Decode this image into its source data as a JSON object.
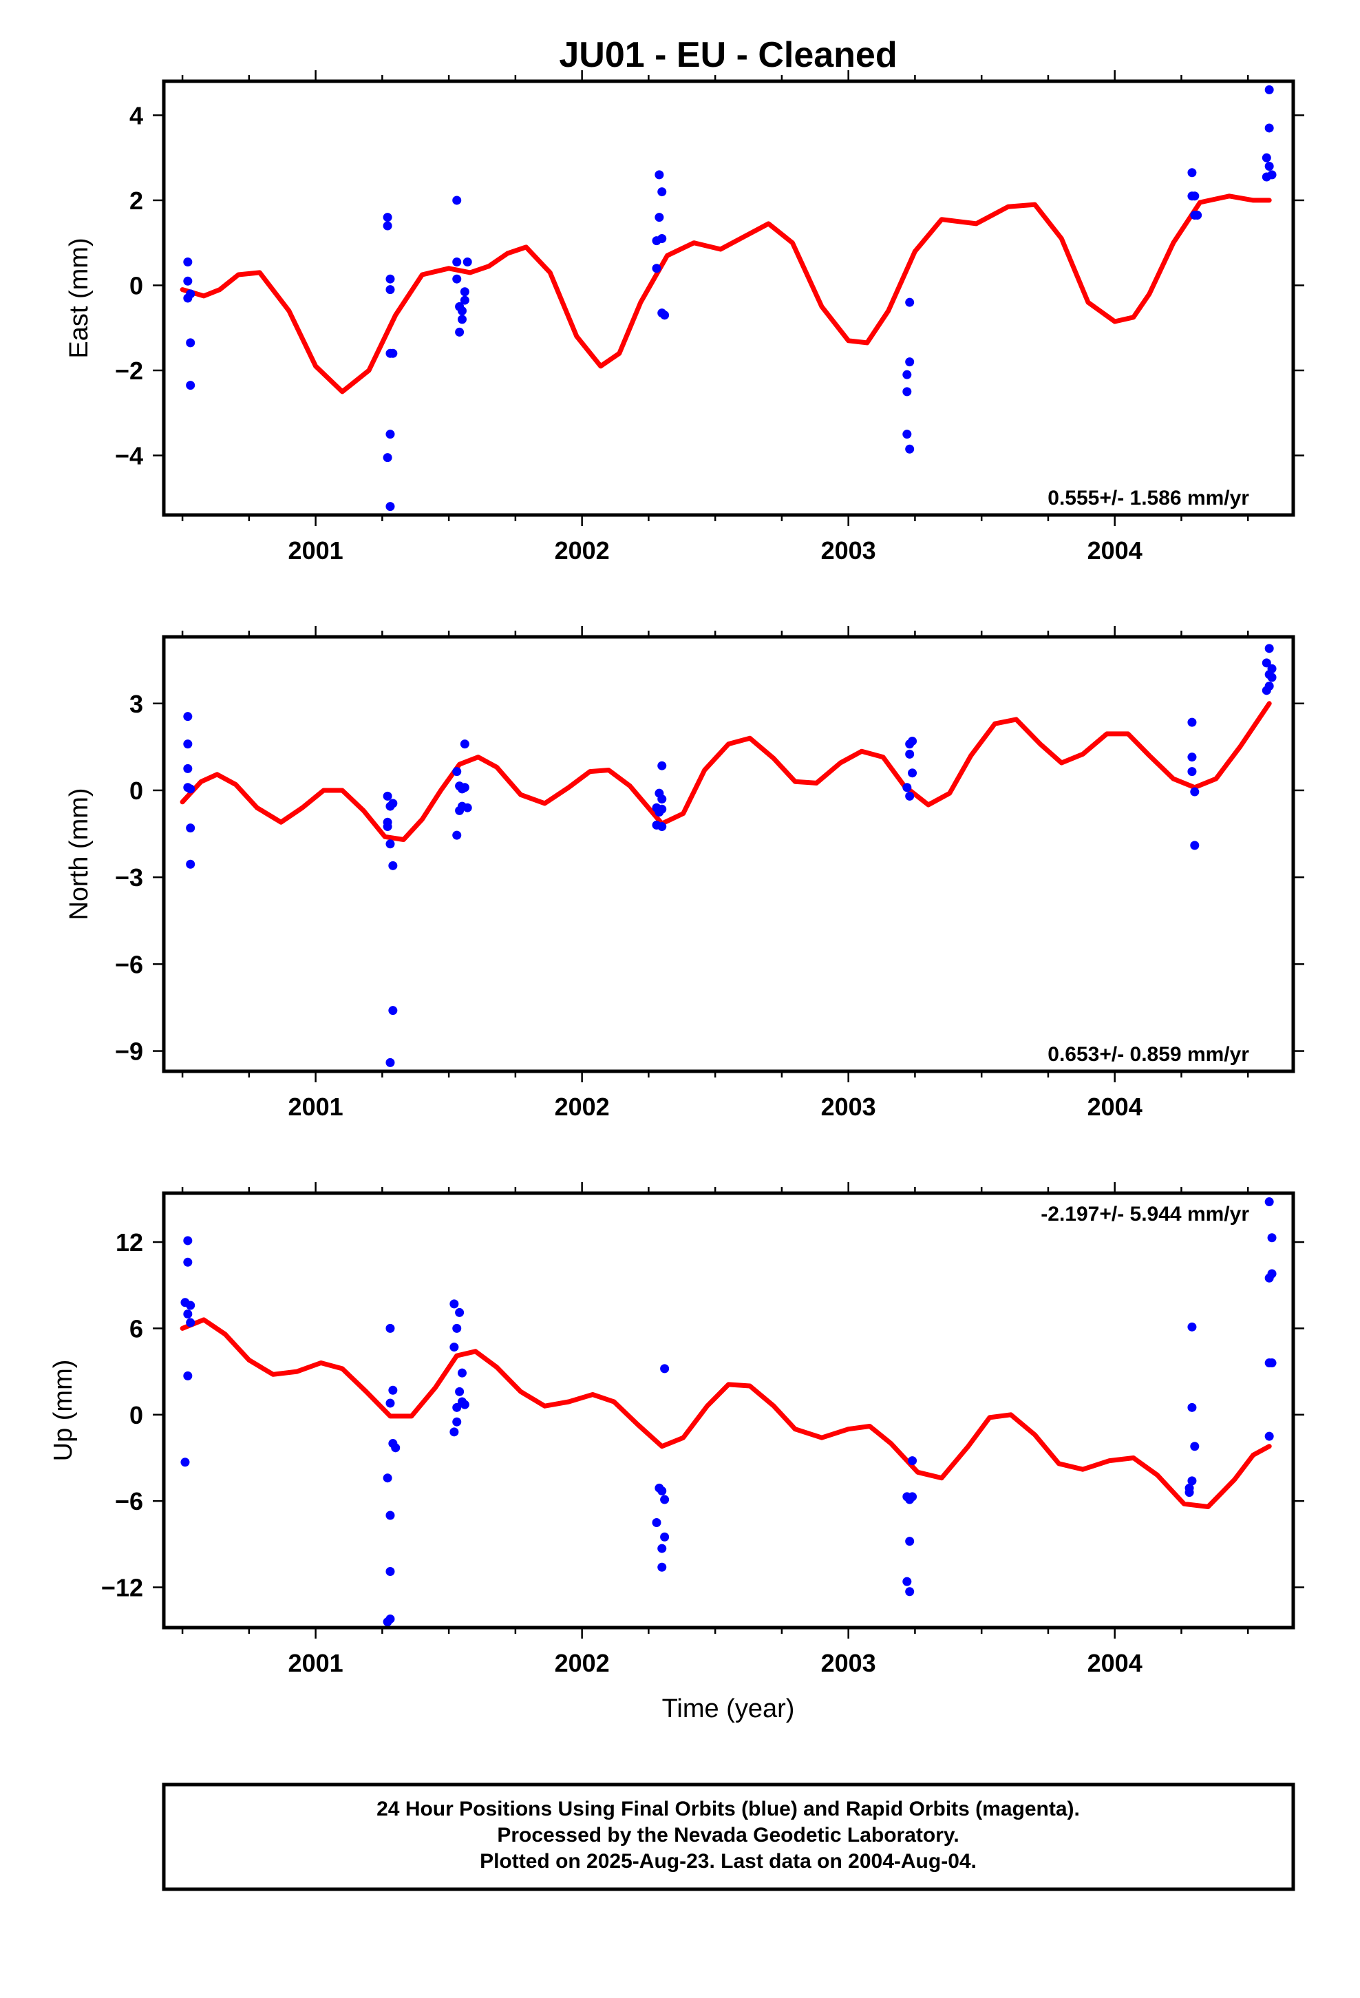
{
  "figure": {
    "title": "JU01  - EU - Cleaned",
    "x_label": "Time (year)",
    "footer_lines": [
      "24 Hour Positions Using Final Orbits (blue) and Rapid Orbits (magenta).",
      "Processed by the Nevada Geodetic Laboratory.",
      "Plotted on 2025-Aug-23. Last data on 2004-Aug-04."
    ]
  },
  "colors": {
    "final_orbits": "#0000ff",
    "model": "#ff0000",
    "frame": "#000000"
  },
  "chart_data": [
    {
      "type": "scatter",
      "name": "east",
      "ylabel": "East (mm)",
      "rate_text": "0.555+/- 1.586 mm/yr",
      "rate_position": "bottom-right",
      "xlim": [
        2000.43,
        2004.67
      ],
      "ylim": [
        -5.4,
        4.8
      ],
      "x_ticks": [
        2001,
        2002,
        2003,
        2004
      ],
      "y_ticks": [
        4,
        2,
        0,
        -2,
        -4
      ],
      "y_tick_labels": [
        "4",
        "2",
        "0",
        "−2",
        "−4"
      ],
      "points": [
        [
          2000.52,
          0.55
        ],
        [
          2000.52,
          0.1
        ],
        [
          2000.52,
          -0.3
        ],
        [
          2000.53,
          -0.2
        ],
        [
          2000.53,
          -1.35
        ],
        [
          2000.53,
          -2.35
        ],
        [
          2001.27,
          1.6
        ],
        [
          2001.27,
          1.4
        ],
        [
          2001.28,
          0.15
        ],
        [
          2001.28,
          -0.1
        ],
        [
          2001.28,
          -1.6
        ],
        [
          2001.29,
          -1.6
        ],
        [
          2001.28,
          -3.5
        ],
        [
          2001.27,
          -4.05
        ],
        [
          2001.28,
          -5.2
        ],
        [
          2001.53,
          2.0
        ],
        [
          2001.53,
          0.55
        ],
        [
          2001.53,
          0.15
        ],
        [
          2001.54,
          -0.5
        ],
        [
          2001.55,
          -0.6
        ],
        [
          2001.55,
          -0.8
        ],
        [
          2001.56,
          -0.35
        ],
        [
          2001.56,
          -0.15
        ],
        [
          2001.57,
          0.55
        ],
        [
          2001.54,
          -1.1
        ],
        [
          2002.29,
          2.6
        ],
        [
          2002.29,
          1.6
        ],
        [
          2002.28,
          1.05
        ],
        [
          2002.3,
          1.1
        ],
        [
          2002.3,
          2.2
        ],
        [
          2002.28,
          0.4
        ],
        [
          2002.3,
          -0.65
        ],
        [
          2002.31,
          -0.7
        ],
        [
          2003.23,
          -0.4
        ],
        [
          2003.23,
          -1.8
        ],
        [
          2003.22,
          -2.1
        ],
        [
          2003.22,
          -2.5
        ],
        [
          2003.22,
          -3.5
        ],
        [
          2003.23,
          -3.85
        ],
        [
          2004.29,
          2.65
        ],
        [
          2004.29,
          2.1
        ],
        [
          2004.3,
          2.1
        ],
        [
          2004.3,
          1.65
        ],
        [
          2004.31,
          1.65
        ],
        [
          2004.58,
          4.6
        ],
        [
          2004.58,
          3.7
        ],
        [
          2004.57,
          3.0
        ],
        [
          2004.58,
          2.8
        ],
        [
          2004.57,
          2.55
        ],
        [
          2004.59,
          2.6
        ]
      ],
      "model": {
        "x": [
          2000.5,
          2000.58,
          2000.64,
          2000.71,
          2000.79,
          2000.9,
          2001.0,
          2001.1,
          2001.2,
          2001.3,
          2001.4,
          2001.5,
          2001.58,
          2001.65,
          2001.72,
          2001.79,
          2001.88,
          2001.98,
          2002.07,
          2002.14,
          2002.22,
          2002.32,
          2002.42,
          2002.52,
          2002.61,
          2002.7,
          2002.79,
          2002.9,
          2003.0,
          2003.07,
          2003.15,
          2003.25,
          2003.35,
          2003.48,
          2003.6,
          2003.7,
          2003.8,
          2003.9,
          2004.0,
          2004.07,
          2004.13,
          2004.22,
          2004.32,
          2004.43,
          2004.52,
          2004.58
        ],
        "y": [
          -0.1,
          -0.25,
          -0.1,
          0.25,
          0.3,
          -0.6,
          -1.9,
          -2.5,
          -2.0,
          -0.7,
          0.25,
          0.4,
          0.3,
          0.45,
          0.75,
          0.9,
          0.3,
          -1.2,
          -1.9,
          -1.6,
          -0.4,
          0.7,
          1.0,
          0.85,
          1.15,
          1.45,
          1.0,
          -0.5,
          -1.3,
          -1.35,
          -0.6,
          0.8,
          1.55,
          1.45,
          1.85,
          1.9,
          1.1,
          -0.4,
          -0.85,
          -0.75,
          -0.2,
          1.0,
          1.95,
          2.1,
          2.0,
          2.0
        ]
      }
    },
    {
      "type": "scatter",
      "name": "north",
      "ylabel": "North (mm)",
      "rate_text": "0.653+/- 0.859 mm/yr",
      "rate_position": "bottom-right",
      "xlim": [
        2000.43,
        2004.67
      ],
      "ylim": [
        -9.7,
        5.3
      ],
      "x_ticks": [
        2001,
        2002,
        2003,
        2004
      ],
      "y_ticks": [
        3,
        0,
        -3,
        -6,
        -9
      ],
      "y_tick_labels": [
        "3",
        "0",
        "−3",
        "−6",
        "−9"
      ],
      "points": [
        [
          2000.52,
          2.55
        ],
        [
          2000.52,
          1.6
        ],
        [
          2000.52,
          0.75
        ],
        [
          2000.52,
          0.1
        ],
        [
          2000.53,
          0.05
        ],
        [
          2000.53,
          -1.3
        ],
        [
          2000.53,
          -2.55
        ],
        [
          2001.27,
          -0.2
        ],
        [
          2001.28,
          -0.55
        ],
        [
          2001.29,
          -0.45
        ],
        [
          2001.27,
          -1.1
        ],
        [
          2001.27,
          -1.25
        ],
        [
          2001.28,
          -1.85
        ],
        [
          2001.29,
          -2.6
        ],
        [
          2001.29,
          -7.6
        ],
        [
          2001.28,
          -9.4
        ],
        [
          2001.56,
          1.6
        ],
        [
          2001.53,
          0.65
        ],
        [
          2001.54,
          0.15
        ],
        [
          2001.55,
          0.05
        ],
        [
          2001.56,
          0.1
        ],
        [
          2001.54,
          -0.7
        ],
        [
          2001.55,
          -0.55
        ],
        [
          2001.57,
          -0.6
        ],
        [
          2001.53,
          -1.55
        ],
        [
          2002.3,
          0.85
        ],
        [
          2002.29,
          -0.1
        ],
        [
          2002.3,
          -0.3
        ],
        [
          2002.28,
          -0.6
        ],
        [
          2002.3,
          -0.65
        ],
        [
          2002.29,
          -0.75
        ],
        [
          2002.28,
          -1.2
        ],
        [
          2002.3,
          -1.25
        ],
        [
          2003.24,
          1.7
        ],
        [
          2003.23,
          1.6
        ],
        [
          2003.23,
          1.25
        ],
        [
          2003.24,
          0.6
        ],
        [
          2003.22,
          0.1
        ],
        [
          2003.23,
          -0.2
        ],
        [
          2004.29,
          2.35
        ],
        [
          2004.29,
          1.15
        ],
        [
          2004.29,
          0.65
        ],
        [
          2004.3,
          -0.05
        ],
        [
          2004.3,
          -1.9
        ],
        [
          2004.58,
          4.9
        ],
        [
          2004.57,
          4.4
        ],
        [
          2004.59,
          4.2
        ],
        [
          2004.58,
          4.0
        ],
        [
          2004.59,
          3.9
        ],
        [
          2004.58,
          3.6
        ],
        [
          2004.57,
          3.45
        ]
      ],
      "model": {
        "x": [
          2000.5,
          2000.57,
          2000.63,
          2000.7,
          2000.78,
          2000.87,
          2000.95,
          2001.03,
          2001.1,
          2001.18,
          2001.26,
          2001.33,
          2001.4,
          2001.47,
          2001.54,
          2001.61,
          2001.68,
          2001.77,
          2001.86,
          2001.95,
          2002.03,
          2002.1,
          2002.18,
          2002.3,
          2002.38,
          2002.46,
          2002.55,
          2002.63,
          2002.72,
          2002.8,
          2002.88,
          2002.97,
          2003.05,
          2003.13,
          2003.21,
          2003.3,
          2003.38,
          2003.46,
          2003.55,
          2003.63,
          2003.72,
          2003.8,
          2003.88,
          2003.97,
          2004.05,
          2004.13,
          2004.22,
          2004.3,
          2004.38,
          2004.47,
          2004.58
        ],
        "y": [
          -0.4,
          0.3,
          0.55,
          0.2,
          -0.6,
          -1.1,
          -0.6,
          0.0,
          0.0,
          -0.7,
          -1.6,
          -1.7,
          -1.0,
          0.0,
          0.9,
          1.15,
          0.8,
          -0.15,
          -0.45,
          0.1,
          0.65,
          0.7,
          0.15,
          -1.15,
          -0.8,
          0.7,
          1.6,
          1.8,
          1.1,
          0.3,
          0.25,
          0.95,
          1.35,
          1.15,
          0.15,
          -0.5,
          -0.1,
          1.2,
          2.3,
          2.45,
          1.6,
          0.95,
          1.25,
          1.95,
          1.95,
          1.2,
          0.4,
          0.1,
          0.4,
          1.5,
          3.0
        ]
      }
    },
    {
      "type": "scatter",
      "name": "up",
      "ylabel": "Up (mm)",
      "rate_text": "-2.197+/- 5.944 mm/yr",
      "rate_position": "top-right",
      "xlim": [
        2000.43,
        2004.67
      ],
      "ylim": [
        -14.8,
        15.4
      ],
      "x_ticks": [
        2001,
        2002,
        2003,
        2004
      ],
      "y_ticks": [
        12,
        6,
        0,
        -6,
        -12
      ],
      "y_tick_labels": [
        "12",
        "6",
        "0",
        "−6",
        "−12"
      ],
      "points": [
        [
          2000.52,
          12.1
        ],
        [
          2000.52,
          10.6
        ],
        [
          2000.51,
          7.8
        ],
        [
          2000.53,
          7.6
        ],
        [
          2000.52,
          7.0
        ],
        [
          2000.53,
          6.4
        ],
        [
          2000.52,
          2.7
        ],
        [
          2000.51,
          -3.3
        ],
        [
          2001.28,
          6.0
        ],
        [
          2001.29,
          1.7
        ],
        [
          2001.28,
          0.8
        ],
        [
          2001.29,
          -2.0
        ],
        [
          2001.3,
          -2.3
        ],
        [
          2001.27,
          -4.4
        ],
        [
          2001.28,
          -7.0
        ],
        [
          2001.28,
          -10.9
        ],
        [
          2001.28,
          -14.2
        ],
        [
          2001.27,
          -14.4
        ],
        [
          2001.52,
          7.7
        ],
        [
          2001.54,
          7.1
        ],
        [
          2001.53,
          6.0
        ],
        [
          2001.52,
          4.7
        ],
        [
          2001.55,
          2.9
        ],
        [
          2001.54,
          1.6
        ],
        [
          2001.55,
          0.9
        ],
        [
          2001.53,
          0.5
        ],
        [
          2001.56,
          0.7
        ],
        [
          2001.53,
          -0.5
        ],
        [
          2001.52,
          -1.2
        ],
        [
          2002.31,
          3.2
        ],
        [
          2002.29,
          -5.1
        ],
        [
          2002.3,
          -5.3
        ],
        [
          2002.31,
          -5.9
        ],
        [
          2002.28,
          -7.5
        ],
        [
          2002.31,
          -8.5
        ],
        [
          2002.3,
          -9.3
        ],
        [
          2002.3,
          -10.6
        ],
        [
          2003.24,
          -3.2
        ],
        [
          2003.22,
          -5.7
        ],
        [
          2003.23,
          -5.9
        ],
        [
          2003.24,
          -5.7
        ],
        [
          2003.23,
          -8.8
        ],
        [
          2003.22,
          -11.6
        ],
        [
          2003.23,
          -12.3
        ],
        [
          2004.29,
          6.1
        ],
        [
          2004.29,
          0.5
        ],
        [
          2004.3,
          -2.2
        ],
        [
          2004.29,
          -4.6
        ],
        [
          2004.28,
          -5.1
        ],
        [
          2004.28,
          -5.4
        ],
        [
          2004.58,
          14.8
        ],
        [
          2004.59,
          12.3
        ],
        [
          2004.59,
          9.8
        ],
        [
          2004.58,
          9.5
        ],
        [
          2004.58,
          3.6
        ],
        [
          2004.59,
          3.6
        ],
        [
          2004.58,
          -1.5
        ]
      ],
      "model": {
        "x": [
          2000.5,
          2000.58,
          2000.66,
          2000.75,
          2000.84,
          2000.93,
          2001.02,
          2001.1,
          2001.19,
          2001.28,
          2001.36,
          2001.45,
          2001.53,
          2001.6,
          2001.68,
          2001.77,
          2001.86,
          2001.95,
          2002.04,
          2002.12,
          2002.21,
          2002.3,
          2002.38,
          2002.47,
          2002.55,
          2002.63,
          2002.72,
          2002.8,
          2002.9,
          2003.0,
          2003.08,
          2003.16,
          2003.26,
          2003.35,
          2003.45,
          2003.53,
          2003.61,
          2003.7,
          2003.79,
          2003.88,
          2003.98,
          2004.07,
          2004.16,
          2004.26,
          2004.35,
          2004.45,
          2004.52,
          2004.58
        ],
        "y": [
          6.0,
          6.6,
          5.6,
          3.8,
          2.8,
          3.0,
          3.6,
          3.2,
          1.6,
          -0.1,
          -0.1,
          1.9,
          4.1,
          4.4,
          3.3,
          1.6,
          0.6,
          0.9,
          1.4,
          0.9,
          -0.7,
          -2.2,
          -1.6,
          0.6,
          2.1,
          2.0,
          0.6,
          -1.0,
          -1.6,
          -1.0,
          -0.8,
          -2.0,
          -4.0,
          -4.4,
          -2.2,
          -0.2,
          0.0,
          -1.4,
          -3.4,
          -3.8,
          -3.2,
          -3.0,
          -4.2,
          -6.2,
          -6.4,
          -4.5,
          -2.8,
          -2.2
        ]
      }
    }
  ]
}
